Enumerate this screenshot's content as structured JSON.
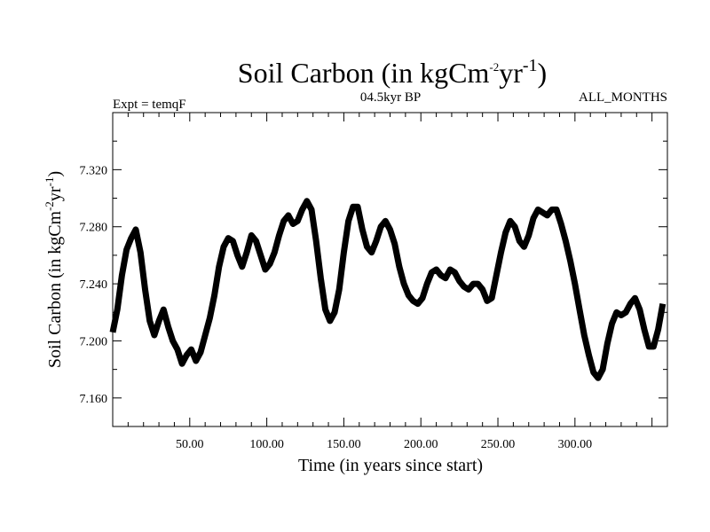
{
  "chart_data": {
    "type": "line",
    "title": {
      "main": "Soil Carbon (in kgCm",
      "sup1": "-2",
      "mid": "yr",
      "sup2": "-1",
      "end": ")"
    },
    "subtitle_left": "Expt = temqF",
    "subtitle_center": "04.5kyr BP",
    "subtitle_right": "ALL_MONTHS",
    "xlabel": "Time (in years since start)",
    "ylabel": {
      "main": "Soil Carbon (in kgCm",
      "sup1": "-2",
      "mid": "yr",
      "sup2": "-1",
      "end": ")"
    },
    "xlim": [
      0,
      360
    ],
    "ylim": [
      7.14,
      7.36
    ],
    "x_ticks": [
      50,
      100,
      150,
      200,
      250,
      300
    ],
    "x_tick_labels": [
      "50.00",
      "100.00",
      "150.00",
      "200.00",
      "250.00",
      "300.00"
    ],
    "y_ticks": [
      7.16,
      7.2,
      7.24,
      7.28,
      7.32
    ],
    "y_tick_labels": [
      "7.160",
      "7.200",
      "7.240",
      "7.280",
      "7.320"
    ],
    "grid": false,
    "line_color": "#000000",
    "series": [
      {
        "x": [
          0,
          3,
          6,
          9,
          12,
          15,
          18,
          21,
          24,
          27,
          30,
          33,
          36,
          39,
          42,
          45,
          48,
          51,
          54,
          57,
          60,
          63,
          66,
          69,
          72,
          75,
          78,
          81,
          84,
          87,
          90,
          93,
          96,
          99,
          102,
          105,
          108,
          111,
          114,
          117,
          120,
          123,
          126,
          129,
          132,
          135,
          138,
          141,
          144,
          147,
          150,
          153,
          156,
          159,
          162,
          165,
          168,
          171,
          174,
          177,
          180,
          183,
          186,
          189,
          192,
          195,
          198,
          201,
          204,
          207,
          210,
          213,
          216,
          219,
          222,
          225,
          228,
          231,
          234,
          237,
          240,
          243,
          246,
          249,
          252,
          255,
          258,
          261,
          264,
          267,
          270,
          273,
          276,
          279,
          282,
          285,
          288,
          291,
          294,
          297,
          300,
          303,
          306,
          309,
          312,
          315,
          318,
          321,
          324,
          327,
          330,
          333,
          336,
          339,
          342,
          345,
          348,
          351,
          354,
          357
        ],
        "values": [
          7.206,
          7.222,
          7.246,
          7.264,
          7.272,
          7.278,
          7.262,
          7.236,
          7.214,
          7.204,
          7.214,
          7.222,
          7.21,
          7.2,
          7.194,
          7.184,
          7.19,
          7.194,
          7.186,
          7.192,
          7.204,
          7.216,
          7.232,
          7.252,
          7.266,
          7.272,
          7.27,
          7.26,
          7.252,
          7.262,
          7.274,
          7.27,
          7.26,
          7.25,
          7.254,
          7.262,
          7.274,
          7.284,
          7.288,
          7.282,
          7.284,
          7.292,
          7.298,
          7.292,
          7.27,
          7.244,
          7.222,
          7.214,
          7.22,
          7.236,
          7.262,
          7.284,
          7.294,
          7.294,
          7.278,
          7.266,
          7.262,
          7.27,
          7.28,
          7.284,
          7.278,
          7.268,
          7.252,
          7.24,
          7.232,
          7.228,
          7.226,
          7.23,
          7.24,
          7.248,
          7.25,
          7.246,
          7.244,
          7.25,
          7.248,
          7.242,
          7.238,
          7.236,
          7.24,
          7.24,
          7.236,
          7.228,
          7.23,
          7.246,
          7.262,
          7.276,
          7.284,
          7.28,
          7.27,
          7.266,
          7.274,
          7.286,
          7.292,
          7.29,
          7.288,
          7.292,
          7.292,
          7.282,
          7.27,
          7.256,
          7.24,
          7.222,
          7.204,
          7.19,
          7.178,
          7.174,
          7.18,
          7.198,
          7.212,
          7.22,
          7.218,
          7.22,
          7.226,
          7.23,
          7.222,
          7.208,
          7.196,
          7.196,
          7.208,
          7.226
        ]
      }
    ]
  }
}
